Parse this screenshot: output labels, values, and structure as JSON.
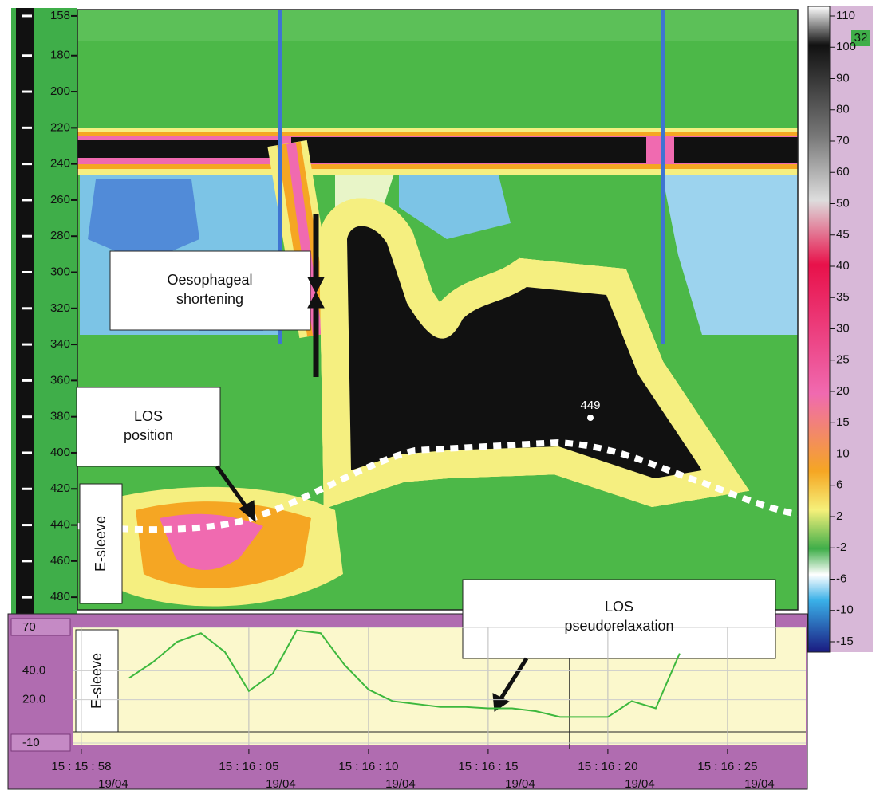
{
  "chart_data": [
    {
      "type": "heatmap",
      "ylim": [
        487,
        154.5
      ],
      "yticks": [
        158,
        180,
        200,
        220,
        240,
        260,
        280,
        300,
        320,
        340,
        360,
        380,
        400,
        420,
        440,
        460,
        480
      ],
      "colorbar_ticks": [
        110,
        100,
        90,
        80,
        70,
        60,
        50,
        45,
        40,
        35,
        30,
        25,
        20,
        15,
        10,
        6,
        2,
        -2,
        -6,
        -10,
        -15
      ],
      "side_label": 32,
      "peak_value": 449,
      "sensor_label": "E-sleeve",
      "annotations": [
        [
          "Oesophageal",
          "shortening"
        ],
        [
          "LOS",
          "position"
        ]
      ]
    },
    {
      "type": "line",
      "xlim": [
        54957.67,
        54988.27
      ],
      "xticks": [
        {
          "value": 54958,
          "label": "15 : 15 : 58",
          "date": "19/04"
        },
        {
          "value": 54965,
          "label": "15 : 16 : 05",
          "date": "19/04"
        },
        {
          "value": 54970,
          "label": "15 : 16 : 10",
          "date": "19/04"
        },
        {
          "value": 54975,
          "label": "15 : 16 : 15",
          "date": "19/04"
        },
        {
          "value": 54980,
          "label": "15 : 16 : 20",
          "date": "19/04"
        },
        {
          "value": 54985,
          "label": "15 : 16 : 25",
          "date": "19/04"
        }
      ],
      "ylim": [
        -10,
        70
      ],
      "yticks": [
        70,
        {
          "value": 40,
          "label": "40.0"
        },
        {
          "value": 20,
          "label": "20.0"
        },
        -10
      ],
      "sensor_label": "E-sleeve",
      "annotations": [
        [
          "LOS",
          "pseudorelaxation"
        ]
      ],
      "series": [
        {
          "color": "#3db83d",
          "x": [
            54960,
            54961,
            54962,
            54963,
            54964,
            54965,
            54966,
            54967,
            54968,
            54969,
            54970,
            54971,
            54972,
            54973,
            54974,
            54975,
            54976,
            54977,
            54978,
            54979,
            54980,
            54981,
            54982,
            54983
          ],
          "values": [
            35,
            46,
            60,
            66,
            53,
            26,
            38,
            68,
            66,
            44,
            27,
            19,
            17,
            15,
            15,
            14,
            14,
            12,
            8,
            8,
            8,
            19,
            14,
            52
          ]
        }
      ]
    }
  ]
}
